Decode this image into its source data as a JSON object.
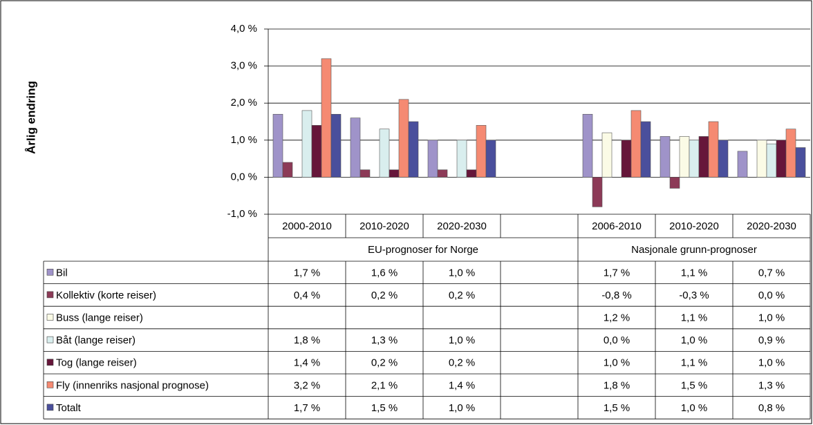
{
  "chart_data": {
    "type": "bar",
    "y_axis_label": "Årlig endring",
    "categories": [
      "2000-2010",
      "2010-2020",
      "2020-2030",
      null,
      "2006-2010",
      "2010-2020",
      "2020-2030"
    ],
    "group_labels": [
      "EU-prognoser for Norge",
      "Nasjonale grunn-prognoser"
    ],
    "ylim": [
      -1,
      4
    ],
    "yticks": [
      {
        "value": -1,
        "label": "-1,0 %"
      },
      {
        "value": 0,
        "label": "0,0 %"
      },
      {
        "value": 1,
        "label": "1,0 %"
      },
      {
        "value": 2,
        "label": "2,0 %"
      },
      {
        "value": 3,
        "label": "3,0 %"
      },
      {
        "value": 4,
        "label": "4,0 %"
      }
    ],
    "grid": true,
    "series": [
      {
        "name": "Bil",
        "color": "#9f93c9",
        "values": [
          1.7,
          1.6,
          1.0,
          null,
          1.7,
          1.1,
          0.7
        ],
        "value_labels": [
          "1,7 %",
          "1,6 %",
          "1,0 %",
          null,
          "1,7 %",
          "1,1 %",
          "0,7 %"
        ]
      },
      {
        "name": "Kollektiv (korte reiser)",
        "color": "#8c3a57",
        "values": [
          0.4,
          0.2,
          0.2,
          null,
          -0.8,
          -0.3,
          0.0
        ],
        "value_labels": [
          "0,4 %",
          "0,2 %",
          "0,2 %",
          null,
          "-0,8 %",
          "-0,3 %",
          "0,0 %"
        ]
      },
      {
        "name": "Buss (lange reiser)",
        "color": "#fbfbe6",
        "values": [
          null,
          null,
          null,
          null,
          1.2,
          1.1,
          1.0
        ],
        "value_labels": [
          null,
          null,
          null,
          null,
          "1,2 %",
          "1,1 %",
          "1,0 %"
        ]
      },
      {
        "name": "Båt (lange reiser)",
        "color": "#d9eeee",
        "values": [
          1.8,
          1.3,
          1.0,
          null,
          0.0,
          1.0,
          0.9
        ],
        "value_labels": [
          "1,8 %",
          "1,3 %",
          "1,0 %",
          null,
          "0,0 %",
          "1,0 %",
          "0,9 %"
        ]
      },
      {
        "name": "Tog (lange reiser)",
        "color": "#66163a",
        "values": [
          1.4,
          0.2,
          0.2,
          null,
          1.0,
          1.1,
          1.0
        ],
        "value_labels": [
          "1,4 %",
          "0,2 %",
          "0,2 %",
          null,
          "1,0 %",
          "1,1 %",
          "1,0 %"
        ]
      },
      {
        "name": "Fly (innenriks nasjonal prognose)",
        "color": "#f58a72",
        "values": [
          3.2,
          2.1,
          1.4,
          null,
          1.8,
          1.5,
          1.3
        ],
        "value_labels": [
          "3,2 %",
          "2,1 %",
          "1,4 %",
          null,
          "1,8 %",
          "1,5 %",
          "1,3 %"
        ]
      },
      {
        "name": "Totalt",
        "color": "#4a4f9c",
        "values": [
          1.7,
          1.5,
          1.0,
          null,
          1.5,
          1.0,
          0.8
        ],
        "value_labels": [
          "1,7 %",
          "1,5 %",
          "1,0 %",
          null,
          "1,5 %",
          "1,0 %",
          "0,8 %"
        ]
      }
    ]
  }
}
